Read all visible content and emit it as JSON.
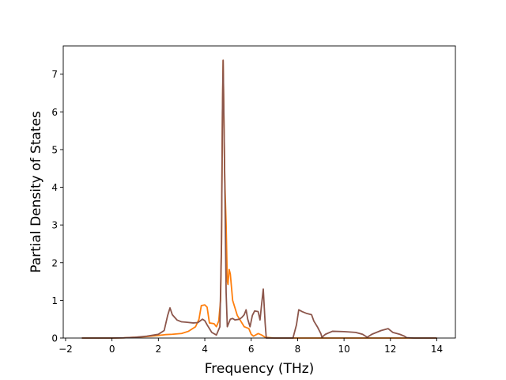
{
  "chart_data": {
    "type": "line",
    "title": "",
    "xlabel": "Frequency (THz)",
    "ylabel": "Partial Density of States",
    "xlim": [
      -2.1,
      14.8
    ],
    "ylim": [
      0,
      7.75
    ],
    "xticks": [
      -2,
      0,
      2,
      4,
      6,
      8,
      10,
      12,
      14
    ],
    "yticks": [
      0,
      1,
      2,
      3,
      4,
      5,
      6,
      7
    ],
    "grid": false,
    "series": [
      {
        "color": "#ff7f0e",
        "points": [
          [
            -1.3,
            0
          ],
          [
            0,
            0
          ],
          [
            0.5,
            0.005
          ],
          [
            1.0,
            0.02
          ],
          [
            1.5,
            0.04
          ],
          [
            2.0,
            0.07
          ],
          [
            2.3,
            0.09
          ],
          [
            2.6,
            0.1
          ],
          [
            3.0,
            0.12
          ],
          [
            3.3,
            0.18
          ],
          [
            3.6,
            0.3
          ],
          [
            3.75,
            0.5
          ],
          [
            3.85,
            0.86
          ],
          [
            4.0,
            0.88
          ],
          [
            4.1,
            0.82
          ],
          [
            4.2,
            0.4
          ],
          [
            4.4,
            0.38
          ],
          [
            4.5,
            0.3
          ],
          [
            4.6,
            0.45
          ],
          [
            4.68,
            1.0
          ],
          [
            4.72,
            2.5
          ],
          [
            4.76,
            6.0
          ],
          [
            4.79,
            7.37
          ],
          [
            4.82,
            6.0
          ],
          [
            4.86,
            4.2
          ],
          [
            4.92,
            3.0
          ],
          [
            4.97,
            1.5
          ],
          [
            5.0,
            1.42
          ],
          [
            5.05,
            1.82
          ],
          [
            5.1,
            1.7
          ],
          [
            5.2,
            1.0
          ],
          [
            5.3,
            0.8
          ],
          [
            5.4,
            0.6
          ],
          [
            5.55,
            0.45
          ],
          [
            5.7,
            0.3
          ],
          [
            5.9,
            0.25
          ],
          [
            6.0,
            0.1
          ],
          [
            6.1,
            0.05
          ],
          [
            6.3,
            0.12
          ],
          [
            6.45,
            0.08
          ],
          [
            6.6,
            0.02
          ],
          [
            7.0,
            0
          ],
          [
            8.0,
            0
          ],
          [
            14.0,
            0
          ]
        ]
      },
      {
        "color": "#8c564b",
        "points": [
          [
            -1.3,
            0
          ],
          [
            0,
            0
          ],
          [
            0.5,
            0.005
          ],
          [
            1.0,
            0.02
          ],
          [
            1.5,
            0.05
          ],
          [
            2.0,
            0.1
          ],
          [
            2.25,
            0.2
          ],
          [
            2.4,
            0.6
          ],
          [
            2.5,
            0.8
          ],
          [
            2.6,
            0.62
          ],
          [
            2.8,
            0.48
          ],
          [
            3.0,
            0.43
          ],
          [
            3.2,
            0.42
          ],
          [
            3.5,
            0.4
          ],
          [
            3.7,
            0.41
          ],
          [
            3.9,
            0.5
          ],
          [
            4.0,
            0.46
          ],
          [
            4.1,
            0.35
          ],
          [
            4.3,
            0.15
          ],
          [
            4.5,
            0.08
          ],
          [
            4.65,
            0.3
          ],
          [
            4.72,
            2.5
          ],
          [
            4.76,
            6.0
          ],
          [
            4.79,
            7.37
          ],
          [
            4.82,
            6.0
          ],
          [
            4.86,
            4.2
          ],
          [
            4.92,
            1.2
          ],
          [
            4.97,
            0.3
          ],
          [
            5.1,
            0.5
          ],
          [
            5.2,
            0.52
          ],
          [
            5.3,
            0.48
          ],
          [
            5.5,
            0.5
          ],
          [
            5.6,
            0.55
          ],
          [
            5.7,
            0.62
          ],
          [
            5.78,
            0.75
          ],
          [
            5.85,
            0.5
          ],
          [
            5.95,
            0.3
          ],
          [
            6.05,
            0.6
          ],
          [
            6.15,
            0.72
          ],
          [
            6.3,
            0.7
          ],
          [
            6.38,
            0.48
          ],
          [
            6.45,
            0.9
          ],
          [
            6.52,
            1.3
          ],
          [
            6.6,
            0.4
          ],
          [
            6.65,
            0
          ],
          [
            7.8,
            0
          ],
          [
            7.95,
            0.35
          ],
          [
            8.05,
            0.75
          ],
          [
            8.2,
            0.7
          ],
          [
            8.4,
            0.65
          ],
          [
            8.6,
            0.62
          ],
          [
            8.7,
            0.45
          ],
          [
            8.85,
            0.3
          ],
          [
            9.0,
            0.12
          ],
          [
            9.05,
            0.02
          ],
          [
            9.2,
            0.1
          ],
          [
            9.5,
            0.18
          ],
          [
            10.0,
            0.17
          ],
          [
            10.5,
            0.15
          ],
          [
            10.8,
            0.1
          ],
          [
            11.0,
            0.02
          ],
          [
            11.2,
            0.1
          ],
          [
            11.6,
            0.2
          ],
          [
            11.9,
            0.25
          ],
          [
            12.1,
            0.15
          ],
          [
            12.4,
            0.1
          ],
          [
            12.6,
            0.05
          ],
          [
            12.7,
            0.01
          ],
          [
            13.0,
            0
          ],
          [
            14.0,
            0
          ]
        ]
      }
    ]
  }
}
